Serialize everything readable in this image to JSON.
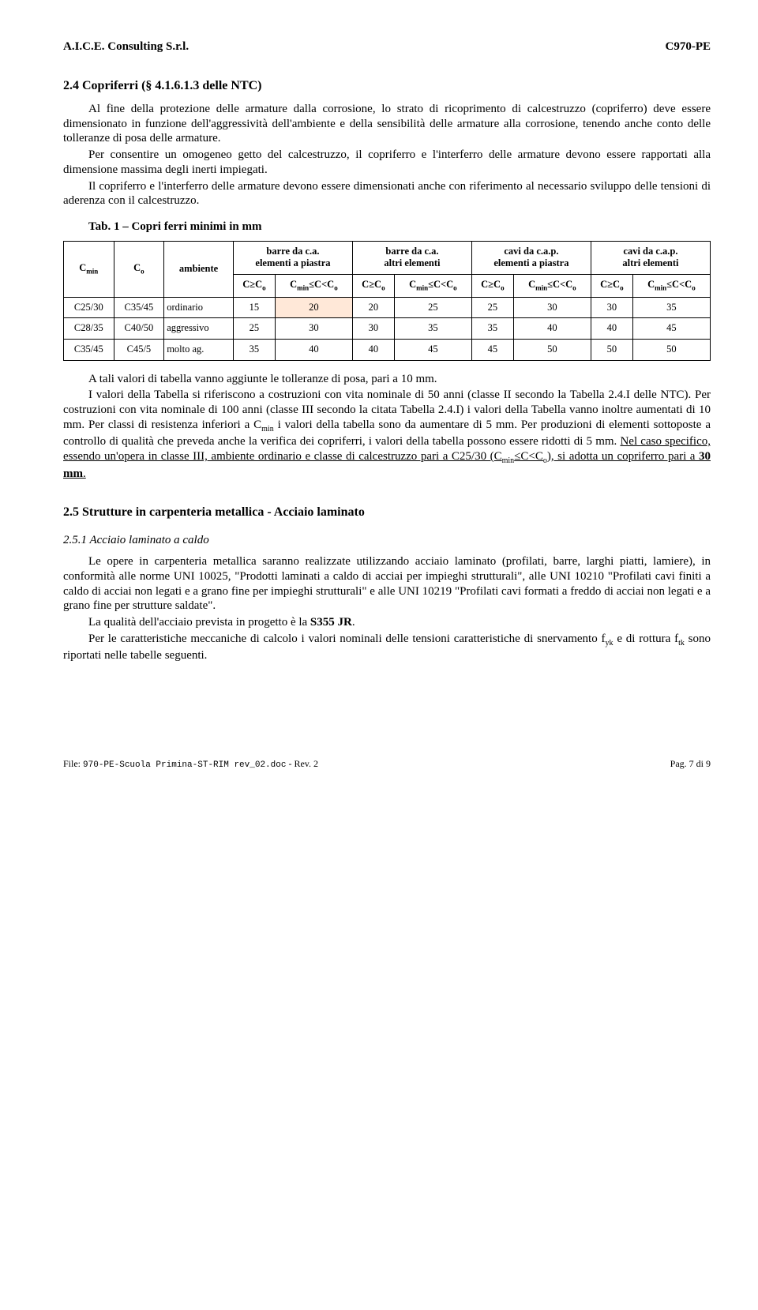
{
  "header": {
    "left": "A.I.C.E. Consulting S.r.l.",
    "right": "C970-PE"
  },
  "section24": {
    "title": "2.4   Copriferri (§ 4.1.6.1.3 delle NTC)",
    "p1": "Al fine della protezione delle armature dalla corrosione, lo strato di ricoprimento di calcestruzzo (copriferro) deve essere dimensionato in funzione dell'aggressività dell'ambiente e della sensibilità delle armature alla corrosione, tenendo anche conto delle tolleranze di posa delle armature.",
    "p2": "Per consentire un omogeneo getto del calcestruzzo, il copriferro e l'interferro delle armature devono essere rapportati alla dimensione massima degli inerti impiegati.",
    "p3": "Il copriferro e l'interferro delle armature devono essere dimensionati anche con riferimento al necessario sviluppo delle tensioni di aderenza con il calcestruzzo.",
    "tab_caption": "Tab. 1 – Copri ferri minimi in mm"
  },
  "table": {
    "group_headers": [
      "barre da c.a.\nelementi a piastra",
      "barre da c.a.\naltri elementi",
      "cavi da c.a.p.\nelementi a piastra",
      "cavi da c.a.p.\naltri elementi"
    ],
    "col_labels": {
      "cmin": "Cmin",
      "co": "Co",
      "amb": "ambiente",
      "a": "C≥Co",
      "b": "Cmin≤C<Co"
    },
    "rows": [
      {
        "cmin": "C25/30",
        "co": "C35/45",
        "amb": "ordinario",
        "v": [
          "15",
          "20",
          "20",
          "25",
          "25",
          "30",
          "30",
          "35"
        ]
      },
      {
        "cmin": "C28/35",
        "co": "C40/50",
        "amb": "aggressivo",
        "v": [
          "25",
          "30",
          "30",
          "35",
          "35",
          "40",
          "40",
          "45"
        ]
      },
      {
        "cmin": "C35/45",
        "co": "C45/5",
        "amb": "molto ag.",
        "v": [
          "35",
          "40",
          "40",
          "45",
          "45",
          "50",
          "50",
          "50"
        ]
      }
    ],
    "highlight": {
      "row": 0,
      "col": 1
    }
  },
  "after_table": {
    "p1": "A tali valori di tabella vanno aggiunte le tolleranze di posa, pari a 10 mm.",
    "p2a": "I valori della Tabella si riferiscono a costruzioni con vita nominale di 50 anni (classe II secondo la Tabella 2.4.I delle NTC). Per costruzioni con vita nominale di 100 anni (classe III secondo la citata Tabella 2.4.I) i valori della Tabella vanno inoltre aumentati di 10 mm. Per classi di resistenza inferiori a C",
    "p2b": " i valori della tabella sono da aumentare di 5 mm. Per produzioni di elementi sottoposte a controllo di qualità che preveda anche la verifica dei copriferri, i valori della tabella possono essere ridotti di 5 mm. ",
    "p2u": "Nel caso specifico, essendo un'opera in classe III, ambiente ordinario e classe di calcestruzzo pari a C25/30 (Cmin≤C<Co), si adotta un copriferro pari a ",
    "p2bold": "30 mm",
    "p2end": "."
  },
  "section25": {
    "title": "2.5   Strutture in carpenteria metallica  -  Acciaio laminato",
    "subsec": "2.5.1    Acciaio laminato a caldo",
    "p1": "Le opere in carpenteria metallica saranno realizzate utilizzando acciaio laminato (profilati, barre, larghi piatti, lamiere), in conformità alle norme UNI 10025, \"Prodotti laminati a caldo di acciai per impieghi strutturali\", alle UNI 10210 \"Profilati cavi finiti a caldo di acciai non legati e a grano fine per impieghi strutturali\" e alle UNI 10219 \"Profilati cavi formati a freddo di acciai non legati e a grano fine per strutture saldate\".",
    "p2a": "La qualità dell'acciaio prevista in progetto è la ",
    "p2b": "S355 JR",
    "p2c": ".",
    "p3a": "Per le caratteristiche meccaniche di calcolo i valori nominali delle tensioni caratteristiche di snervamento f",
    "p3b": " e di rottura f",
    "p3c": " sono riportati nelle tabelle seguenti."
  },
  "footer": {
    "left_label": "File: ",
    "left_mono": "970-PE-Scuola Primina-ST-RIM rev_02.doc",
    "left_rev": " - Rev. 2",
    "right": "Pag. 7 di 9"
  }
}
